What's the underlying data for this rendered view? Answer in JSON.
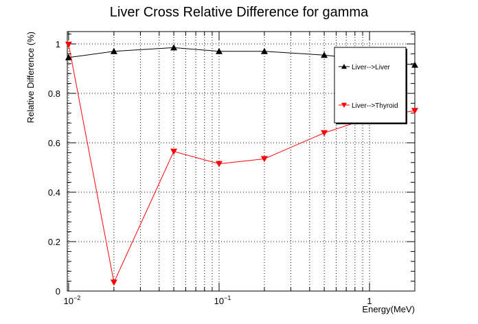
{
  "chart_data": {
    "type": "line",
    "title": "Liver Cross Relative Difference for gamma",
    "xlabel": "Energy(MeV)",
    "ylabel": "Relative Difference (%)",
    "xscale": "log",
    "xlim": [
      0.0098,
      2.0
    ],
    "ylim": [
      0,
      1.05
    ],
    "grid": true,
    "legend_position": "top-right",
    "x": [
      0.01,
      0.02,
      0.05,
      0.1,
      0.2,
      0.5,
      1.0,
      2.0
    ],
    "x_ticks": [
      {
        "value": 0.01,
        "base": "10",
        "exp": "−2"
      },
      {
        "value": 0.1,
        "base": "10",
        "exp": "−1"
      },
      {
        "value": 1,
        "base": "1",
        "exp": ""
      }
    ],
    "y_ticks": [
      {
        "value": 0,
        "label": "0"
      },
      {
        "value": 0.2,
        "label": "0.2"
      },
      {
        "value": 0.4,
        "label": "0.4"
      },
      {
        "value": 0.6,
        "label": "0.6"
      },
      {
        "value": 0.8,
        "label": "0.8"
      },
      {
        "value": 1.0,
        "label": "1"
      }
    ],
    "series": [
      {
        "name": "Liver-->Liver",
        "color": "#000000",
        "marker": "triangle-up",
        "values": [
          0.945,
          0.97,
          0.985,
          0.97,
          0.97,
          0.955,
          0.935,
          0.915
        ]
      },
      {
        "name": "Liver-->Thyroid",
        "color": "#ff0000",
        "marker": "triangle-down",
        "values": [
          0.998,
          0.035,
          0.565,
          0.515,
          0.535,
          0.64,
          0.7,
          0.73
        ]
      }
    ]
  }
}
